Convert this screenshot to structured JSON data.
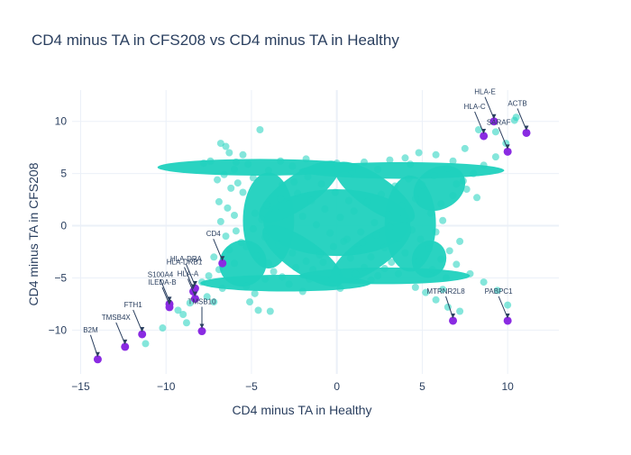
{
  "chart_data": {
    "type": "scatter",
    "title": "CD4 minus TA in CFS208 vs CD4 minus TA in Healthy",
    "xlabel": "CD4 minus TA in Healthy",
    "ylabel": "CD4 minus TA in CFS208",
    "xlim": [
      -15.5,
      13
    ],
    "ylim": [
      -14.2,
      13
    ],
    "x_ticks": [
      -15,
      -10,
      -5,
      0,
      5,
      10
    ],
    "y_ticks": [
      -10,
      -5,
      0,
      5,
      10
    ],
    "x_tick_labels": [
      "−15",
      "−10",
      "−5",
      "0",
      "5",
      "10"
    ],
    "y_tick_labels": [
      "−10",
      "−5",
      "0",
      "5",
      "10"
    ],
    "grid": true,
    "colors": {
      "background_points": "#1fd1be",
      "highlight_points": "#8a2be2",
      "grid": "#ebf0f8",
      "zero_line": "#ebf0f8",
      "text": "#2a3f5f"
    },
    "background_points": [
      [
        -6.8,
        7.9
      ],
      [
        -6.5,
        7.6
      ],
      [
        -7.4,
        6.2
      ],
      [
        -6.3,
        7.0
      ],
      [
        -5.5,
        6.8
      ],
      [
        -4.5,
        9.2
      ],
      [
        -5.9,
        6.1
      ],
      [
        -7.8,
        6.0
      ],
      [
        -6.0,
        5.4
      ],
      [
        -5.2,
        5.9
      ],
      [
        -6.6,
        4.9
      ],
      [
        -7.0,
        4.4
      ],
      [
        -5.8,
        4.1
      ],
      [
        -6.2,
        3.6
      ],
      [
        -5.5,
        3.2
      ],
      [
        -6.9,
        2.3
      ],
      [
        -6.4,
        1.7
      ],
      [
        -6.0,
        1.0
      ],
      [
        -6.8,
        0.4
      ],
      [
        -5.9,
        -0.5
      ],
      [
        -6.5,
        -1.0
      ],
      [
        -5.6,
        -1.6
      ],
      [
        -6.3,
        -2.3
      ],
      [
        -7.2,
        -3.0
      ],
      [
        -6.0,
        -3.6
      ],
      [
        -6.9,
        -4.2
      ],
      [
        -7.5,
        -4.8
      ],
      [
        -7.9,
        -5.4
      ],
      [
        -8.3,
        -6.1
      ],
      [
        -7.6,
        -6.8
      ],
      [
        -8.6,
        -7.4
      ],
      [
        -9.3,
        -8.1
      ],
      [
        -9.0,
        -8.5
      ],
      [
        -8.8,
        -9.3
      ],
      [
        -10.2,
        -9.8
      ],
      [
        -11.2,
        -11.3
      ],
      [
        -7.2,
        -7.3
      ],
      [
        -6.7,
        -6.0
      ],
      [
        -5.3,
        -5.8
      ],
      [
        -4.8,
        -6.5
      ],
      [
        -5.1,
        -7.3
      ],
      [
        -4.6,
        -8.1
      ],
      [
        -3.9,
        -8.2
      ],
      [
        -4.2,
        -5.1
      ],
      [
        -3.7,
        -4.4
      ],
      [
        -2.8,
        -5.6
      ],
      [
        -2.0,
        -6.3
      ],
      [
        -1.4,
        -4.2
      ],
      [
        -0.6,
        -5.3
      ],
      [
        0.2,
        -6.0
      ],
      [
        1.1,
        -4.6
      ],
      [
        2.0,
        -5.2
      ],
      [
        2.8,
        -4.1
      ],
      [
        3.6,
        -4.6
      ],
      [
        4.6,
        -5.9
      ],
      [
        5.2,
        -6.4
      ],
      [
        5.8,
        -7.1
      ],
      [
        6.5,
        -7.8
      ],
      [
        7.2,
        -8.2
      ],
      [
        6.2,
        -6.1
      ],
      [
        7.8,
        -4.6
      ],
      [
        8.6,
        -5.4
      ],
      [
        9.4,
        -6.2
      ],
      [
        10.0,
        -7.6
      ],
      [
        6.1,
        -3.2
      ],
      [
        5.4,
        -2.2
      ],
      [
        4.9,
        -1.3
      ],
      [
        5.8,
        -0.6
      ],
      [
        6.2,
        0.5
      ],
      [
        5.5,
        1.2
      ],
      [
        6.1,
        2.1
      ],
      [
        6.8,
        2.9
      ],
      [
        7.6,
        3.5
      ],
      [
        8.2,
        2.7
      ],
      [
        7.4,
        4.3
      ],
      [
        8.0,
        5.0
      ],
      [
        8.6,
        5.8
      ],
      [
        9.3,
        6.6
      ],
      [
        9.9,
        7.9
      ],
      [
        10.4,
        10.1
      ],
      [
        10.5,
        10.4
      ],
      [
        9.3,
        9.0
      ],
      [
        8.3,
        9.2
      ],
      [
        7.5,
        7.4
      ],
      [
        6.8,
        6.2
      ],
      [
        5.8,
        6.8
      ],
      [
        4.8,
        7.0
      ],
      [
        4.0,
        6.5
      ],
      [
        3.1,
        6.3
      ],
      [
        2.4,
        5.4
      ],
      [
        1.6,
        6.1
      ],
      [
        0.9,
        5.2
      ],
      [
        0.0,
        6.0
      ],
      [
        -0.9,
        5.6
      ],
      [
        -1.8,
        6.4
      ],
      [
        -2.6,
        5.7
      ],
      [
        -3.3,
        6.2
      ],
      [
        -4.0,
        5.3
      ],
      [
        -4.9,
        4.6
      ],
      [
        -3.2,
        3.9
      ],
      [
        -2.3,
        3.1
      ],
      [
        -1.5,
        2.4
      ],
      [
        -0.7,
        1.6
      ],
      [
        0.2,
        0.8
      ],
      [
        1.0,
        1.4
      ],
      [
        1.8,
        2.3
      ],
      [
        2.6,
        3.0
      ],
      [
        3.4,
        3.8
      ],
      [
        4.2,
        4.5
      ],
      [
        4.6,
        2.6
      ],
      [
        3.8,
        1.9
      ],
      [
        3.0,
        1.1
      ],
      [
        2.2,
        0.3
      ],
      [
        1.4,
        -0.6
      ],
      [
        0.6,
        -1.3
      ],
      [
        -0.2,
        -2.0
      ],
      [
        -1.0,
        -2.8
      ],
      [
        -1.8,
        -3.4
      ],
      [
        -2.6,
        -2.6
      ],
      [
        -3.4,
        -1.8
      ],
      [
        -4.2,
        -1.1
      ],
      [
        -4.9,
        -0.3
      ],
      [
        -4.4,
        0.6
      ],
      [
        -3.6,
        1.3
      ],
      [
        -2.8,
        2.1
      ],
      [
        -2.0,
        0.9
      ],
      [
        -1.2,
        0.1
      ],
      [
        -0.4,
        -0.7
      ],
      [
        0.4,
        -1.5
      ],
      [
        1.2,
        -2.3
      ],
      [
        2.0,
        -3.0
      ],
      [
        2.8,
        -2.1
      ],
      [
        3.6,
        -1.2
      ],
      [
        4.4,
        -0.4
      ],
      [
        3.9,
        0.7
      ],
      [
        3.1,
        -0.1
      ],
      [
        2.3,
        -0.9
      ],
      [
        1.5,
        -1.6
      ],
      [
        0.7,
        2.4
      ],
      [
        -0.1,
        3.2
      ],
      [
        -0.9,
        4.0
      ],
      [
        -1.7,
        4.7
      ],
      [
        -2.5,
        4.2
      ],
      [
        -3.3,
        2.6
      ],
      [
        -4.1,
        2.0
      ],
      [
        -4.8,
        1.2
      ],
      [
        -5.3,
        -2.0
      ],
      [
        -4.7,
        -2.9
      ],
      [
        -4.0,
        -3.6
      ],
      [
        -3.2,
        -4.9
      ],
      [
        -2.4,
        -4.0
      ],
      [
        -1.6,
        -5.1
      ],
      [
        -0.8,
        -3.5
      ],
      [
        0.0,
        -4.4
      ],
      [
        0.8,
        -3.1
      ],
      [
        1.6,
        -4.0
      ],
      [
        2.4,
        -4.8
      ],
      [
        3.2,
        -3.5
      ],
      [
        4.0,
        -2.6
      ],
      [
        4.8,
        -3.4
      ],
      [
        5.6,
        -4.2
      ],
      [
        6.4,
        -5.0
      ],
      [
        7.0,
        -3.7
      ],
      [
        6.6,
        -2.4
      ],
      [
        7.2,
        -1.5
      ],
      [
        5.0,
        3.9
      ],
      [
        5.7,
        4.8
      ],
      [
        6.5,
        5.5
      ],
      [
        7.0,
        4.0
      ],
      [
        4.3,
        5.9
      ]
    ],
    "highlighted_points": [
      {
        "label": "B2M",
        "x": -14.0,
        "y": -12.8
      },
      {
        "label": "TMSB4X",
        "x": -12.4,
        "y": -11.6
      },
      {
        "label": "FTH1",
        "x": -11.4,
        "y": -10.4
      },
      {
        "label": "TMSB10",
        "x": -7.9,
        "y": -10.1
      },
      {
        "label": "S100A4",
        "x": -9.8,
        "y": -7.5
      },
      {
        "label": "ILEDA-B",
        "x": -9.8,
        "y": -7.8
      },
      {
        "label": "HLA-A",
        "x": -8.3,
        "y": -7.0
      },
      {
        "label": "HLA-DRB1",
        "x": -8.4,
        "y": -6.3
      },
      {
        "label": "HLA-DRA",
        "x": -8.3,
        "y": -6.0
      },
      {
        "label": "CD4",
        "x": -6.7,
        "y": -3.6
      },
      {
        "label": "MTRNR2L8",
        "x": 6.8,
        "y": -9.1
      },
      {
        "label": "PABPC1",
        "x": 10.0,
        "y": -9.1
      },
      {
        "label": "HLA-E",
        "x": 9.2,
        "y": 10.0
      },
      {
        "label": "HLA-C",
        "x": 8.6,
        "y": 8.6
      },
      {
        "label": "SARAF",
        "x": 10.0,
        "y": 7.1
      },
      {
        "label": "ACTB",
        "x": 11.1,
        "y": 8.9
      }
    ]
  }
}
